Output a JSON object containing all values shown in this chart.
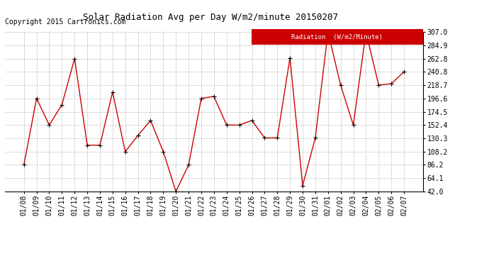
{
  "title": "Solar Radiation Avg per Day W/m2/minute 20150207",
  "copyright": "Copyright 2015 Cartronics.com",
  "legend_label": "Radiation  (W/m2/Minute)",
  "dates": [
    "01/08",
    "01/09",
    "01/10",
    "01/11",
    "01/12",
    "01/13",
    "01/14",
    "01/15",
    "01/16",
    "01/17",
    "01/18",
    "01/19",
    "01/20",
    "01/21",
    "01/22",
    "01/23",
    "01/24",
    "01/25",
    "01/26",
    "01/27",
    "01/28",
    "01/29",
    "01/30",
    "01/31",
    "02/01",
    "02/02",
    "02/03",
    "02/04",
    "02/05",
    "02/06",
    "02/07"
  ],
  "values": [
    86.2,
    196.6,
    152.4,
    186.0,
    262.8,
    119.0,
    119.0,
    207.0,
    108.2,
    135.0,
    160.0,
    108.2,
    42.0,
    86.2,
    196.6,
    200.0,
    152.4,
    152.4,
    160.0,
    131.0,
    131.0,
    264.0,
    52.0,
    131.0,
    307.0,
    218.7,
    152.4,
    307.0,
    218.7,
    221.0,
    240.8
  ],
  "ylim_min": 42.0,
  "ylim_max": 307.0,
  "yticks": [
    42.0,
    64.1,
    86.2,
    108.2,
    130.3,
    152.4,
    174.5,
    196.6,
    218.7,
    240.8,
    262.8,
    284.9,
    307.0
  ],
  "line_color": "#cc0000",
  "marker_color": "#000000",
  "background_color": "#ffffff",
  "grid_color": "#bbbbbb",
  "legend_bg": "#cc0000",
  "legend_text_color": "#ffffff",
  "title_fontsize": 9,
  "tick_fontsize": 7,
  "copyright_fontsize": 7
}
